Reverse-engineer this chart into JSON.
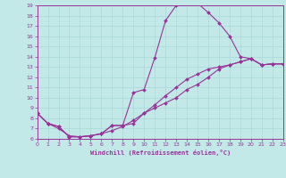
{
  "title": "",
  "xlabel": "Windchill (Refroidissement éolien,°C)",
  "ylabel": "",
  "xlim": [
    0,
    23
  ],
  "ylim": [
    6,
    19
  ],
  "xticks": [
    0,
    1,
    2,
    3,
    4,
    5,
    6,
    7,
    8,
    9,
    10,
    11,
    12,
    13,
    14,
    15,
    16,
    17,
    18,
    19,
    20,
    21,
    22,
    23
  ],
  "yticks": [
    6,
    7,
    8,
    9,
    10,
    11,
    12,
    13,
    14,
    15,
    16,
    17,
    18,
    19
  ],
  "bg_color": "#c2e8e8",
  "line_color": "#993399",
  "grid_color": "#a8d8d8",
  "line1_x": [
    0,
    1,
    2,
    3,
    4,
    5,
    6,
    7,
    8,
    9,
    10,
    11,
    12,
    13,
    14,
    15,
    16,
    17,
    18,
    19,
    20,
    21,
    22,
    23
  ],
  "line1_y": [
    8.5,
    7.5,
    7.2,
    6.2,
    6.2,
    6.3,
    6.5,
    7.3,
    7.3,
    10.5,
    10.8,
    13.9,
    17.5,
    19.0,
    19.3,
    19.2,
    18.3,
    17.3,
    16.0,
    14.0,
    13.8,
    13.2,
    13.3,
    13.3
  ],
  "line2_x": [
    0,
    1,
    2,
    3,
    4,
    5,
    6,
    7,
    8,
    9,
    10,
    11,
    12,
    13,
    14,
    15,
    16,
    17,
    18,
    19,
    20,
    21,
    22,
    23
  ],
  "line2_y": [
    8.5,
    7.5,
    7.2,
    6.2,
    6.2,
    6.3,
    6.5,
    7.3,
    7.3,
    7.5,
    8.5,
    9.0,
    9.5,
    10.0,
    10.8,
    11.3,
    12.0,
    12.8,
    13.2,
    13.5,
    13.8,
    13.2,
    13.3,
    13.3
  ],
  "line3_x": [
    0,
    1,
    2,
    3,
    4,
    5,
    6,
    7,
    8,
    9,
    10,
    11,
    12,
    13,
    14,
    15,
    16,
    17,
    18,
    19,
    20,
    21,
    22,
    23
  ],
  "line3_y": [
    8.5,
    7.5,
    7.0,
    6.3,
    6.2,
    6.3,
    6.5,
    6.8,
    7.2,
    7.8,
    8.5,
    9.3,
    10.2,
    11.0,
    11.8,
    12.3,
    12.8,
    13.0,
    13.2,
    13.5,
    13.8,
    13.2,
    13.3,
    13.3
  ]
}
